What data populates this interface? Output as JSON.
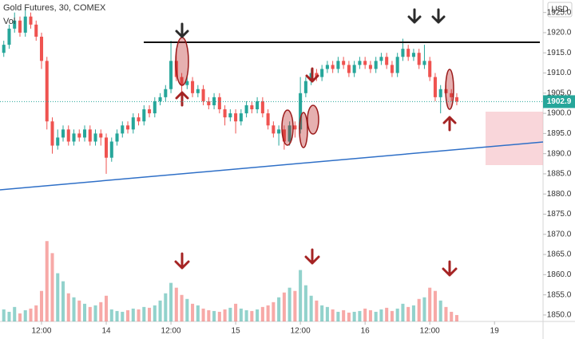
{
  "chart_data": {
    "type": "candlestick",
    "title": "Gold Futures, 30, COMEX",
    "volume_label": "Vol",
    "currency": "USD",
    "x": [
      5,
      6,
      7,
      8,
      9,
      10,
      11,
      12,
      13,
      14,
      15,
      16,
      17,
      18,
      19,
      20,
      21,
      22,
      23,
      24,
      25,
      26,
      27,
      28,
      29,
      30,
      31,
      32,
      33,
      34,
      35,
      36,
      37,
      38,
      39,
      40,
      41,
      42,
      43,
      44,
      45,
      46,
      47,
      48,
      49,
      50,
      51,
      52,
      53,
      54,
      55,
      56,
      57,
      58,
      59,
      60,
      61,
      62,
      63,
      64,
      65,
      66,
      67,
      68,
      69,
      70,
      71,
      72,
      73,
      74,
      75,
      76,
      77,
      78,
      79,
      80,
      81,
      82,
      83,
      84,
      85,
      86,
      87,
      88,
      89
    ],
    "open": [
      1915,
      1917,
      1921,
      1923,
      1920,
      1924,
      1922,
      1919,
      1913,
      1898,
      1892,
      1894,
      1896,
      1893,
      1895,
      1894,
      1896,
      1893,
      1895,
      1894,
      1889,
      1893,
      1895,
      1897,
      1896,
      1899,
      1898,
      1901,
      1900,
      1903,
      1904,
      1906,
      1913,
      1909,
      1907,
      1908,
      1905,
      1906,
      1903,
      1902,
      1904,
      1901,
      1899,
      1900,
      1898,
      1900,
      1902,
      1901,
      1903,
      1900,
      1897,
      1895,
      1896,
      1893,
      1897,
      1896,
      1905,
      1908,
      1910,
      1909,
      1911,
      1912,
      1911,
      1913,
      1912,
      1910,
      1912,
      1913,
      1912,
      1911,
      1913,
      1914,
      1912,
      1910,
      1914,
      1916,
      1914,
      1915,
      1912,
      1913,
      1909,
      1904,
      1906,
      1905,
      1904
    ],
    "high": [
      1918,
      1922,
      1925,
      1924,
      1926,
      1925,
      1923,
      1920,
      1914,
      1899,
      1896,
      1897,
      1897,
      1896,
      1896,
      1897,
      1897,
      1896,
      1896,
      1895,
      1894,
      1896,
      1898,
      1898,
      1900,
      1900,
      1902,
      1902,
      1904,
      1905,
      1907,
      1918,
      1916,
      1910,
      1909,
      1909,
      1907,
      1907,
      1904,
      1905,
      1905,
      1902,
      1901,
      1901,
      1901,
      1903,
      1903,
      1904,
      1904,
      1901,
      1898,
      1897,
      1897,
      1898,
      1898,
      1909,
      1909,
      1911,
      1911,
      1912,
      1913,
      1913,
      1914,
      1914,
      1913,
      1913,
      1914,
      1914,
      1913,
      1914,
      1915,
      1915,
      1913,
      1915,
      1918.5,
      1917,
      1916,
      1916,
      1917,
      1914,
      1910,
      1907,
      1907,
      1906,
      1905
    ],
    "low": [
      1914,
      1916,
      1920,
      1919,
      1919,
      1921,
      1918,
      1911,
      1896,
      1890,
      1891,
      1893,
      1892,
      1892,
      1893,
      1893,
      1892,
      1892,
      1892,
      1885,
      1888,
      1892,
      1894,
      1895,
      1895,
      1897,
      1897,
      1899,
      1899,
      1902,
      1903,
      1905,
      1908,
      1905,
      1906,
      1904,
      1904,
      1902,
      1901,
      1901,
      1900,
      1897,
      1898,
      1895,
      1897,
      1899,
      1900,
      1900,
      1899,
      1896,
      1894,
      1892,
      1891,
      1892,
      1894,
      1895,
      1904,
      1907,
      1908,
      1908,
      1910,
      1910,
      1910,
      1911,
      1909,
      1909,
      1911,
      1911,
      1910,
      1910,
      1912,
      1911,
      1909,
      1909,
      1913,
      1913,
      1913,
      1911,
      1911,
      1908,
      1903,
      1900,
      1904,
      1903,
      1902
    ],
    "close": [
      1917,
      1921,
      1923,
      1920,
      1924,
      1922,
      1919,
      1913,
      1898,
      1892,
      1894,
      1896,
      1893,
      1895,
      1894,
      1896,
      1893,
      1895,
      1894,
      1889,
      1893,
      1895,
      1897,
      1896,
      1899,
      1898,
      1901,
      1900,
      1903,
      1904,
      1906,
      1913,
      1909,
      1907,
      1908,
      1905,
      1906,
      1903,
      1902,
      1904,
      1901,
      1899,
      1900,
      1898,
      1900,
      1902,
      1901,
      1903,
      1900,
      1897,
      1895,
      1896,
      1893,
      1897,
      1896,
      1905,
      1908,
      1910,
      1909,
      1911,
      1912,
      1911,
      1913,
      1912,
      1910,
      1912,
      1913,
      1912,
      1911,
      1913,
      1914,
      1912,
      1910,
      1914,
      1916,
      1914,
      1915,
      1912,
      1913,
      1909,
      1904,
      1906,
      1905,
      1904,
      1902.9
    ],
    "volume": [
      150,
      120,
      180,
      100,
      140,
      160,
      200,
      380,
      1000,
      850,
      600,
      500,
      350,
      300,
      260,
      220,
      180,
      200,
      240,
      320,
      150,
      130,
      120,
      140,
      160,
      150,
      180,
      170,
      200,
      260,
      350,
      480,
      420,
      330,
      280,
      220,
      200,
      160,
      140,
      130,
      120,
      150,
      170,
      220,
      160,
      140,
      130,
      150,
      180,
      200,
      240,
      300,
      360,
      420,
      380,
      640,
      450,
      320,
      260,
      200,
      180,
      150,
      120,
      140,
      110,
      120,
      130,
      160,
      140,
      120,
      150,
      170,
      130,
      160,
      220,
      180,
      200,
      280,
      300,
      420,
      380,
      260,
      180,
      120,
      80
    ],
    "up_color": "#26a69a",
    "down_color": "#ef5350",
    "last_price": 1902.9,
    "xlim": [
      4.3,
      105
    ],
    "ylim": [
      1848.4,
      1928.1
    ],
    "y2lim": [
      0,
      4000
    ],
    "xticks": [
      {
        "value": 12,
        "label": "12:00"
      },
      {
        "value": 24,
        "label": "14"
      },
      {
        "value": 36,
        "label": "12:00"
      },
      {
        "value": 48,
        "label": "15"
      },
      {
        "value": 60,
        "label": "12:00"
      },
      {
        "value": 72,
        "label": "16"
      },
      {
        "value": 84,
        "label": "12:00"
      },
      {
        "value": 96,
        "label": "19"
      }
    ],
    "yticks": [
      {
        "value": 1850,
        "label": "1850.0"
      },
      {
        "value": 1855,
        "label": "1855.0"
      },
      {
        "value": 1860,
        "label": "1860.0"
      },
      {
        "value": 1865,
        "label": "1865.0"
      },
      {
        "value": 1870,
        "label": "1870.0"
      },
      {
        "value": 1875,
        "label": "1875.0"
      },
      {
        "value": 1880,
        "label": "1880.0"
      },
      {
        "value": 1885,
        "label": "1885.0"
      },
      {
        "value": 1890,
        "label": "1890.0"
      },
      {
        "value": 1895,
        "label": "1895.0"
      },
      {
        "value": 1900,
        "label": "1900.0"
      },
      {
        "value": 1905,
        "label": "1905.0"
      },
      {
        "value": 1910,
        "label": "1910.0"
      },
      {
        "value": 1915,
        "label": "1915.0"
      },
      {
        "value": 1920,
        "label": "1920.0"
      },
      {
        "value": 1925,
        "label": "1925.0"
      }
    ]
  }
}
